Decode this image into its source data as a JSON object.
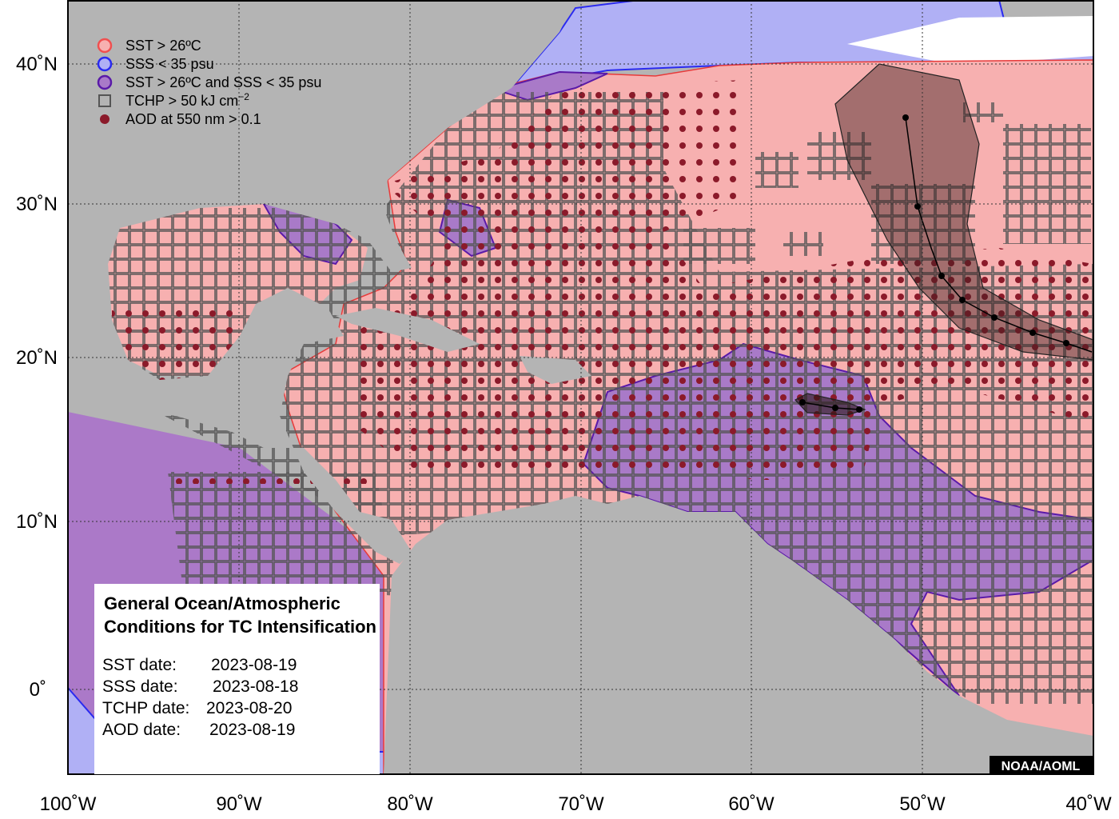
{
  "legend": {
    "items": [
      {
        "label": "SST > 26ºC"
      },
      {
        "label": "SSS < 35 psu"
      },
      {
        "label": "SST > 26ºC and SSS < 35 psu"
      },
      {
        "label": "TCHP > 50 kJ cm",
        "superscript": "−2"
      },
      {
        "label": "AOD at 550 nm > 0.1"
      }
    ]
  },
  "axes": {
    "longitude_labels": [
      "100˚W",
      "90˚W",
      "80˚W",
      "70˚W",
      "60˚W",
      "50˚W",
      "40˚W"
    ],
    "latitude_labels": [
      "40˚N",
      "30˚N",
      "20˚N",
      "10˚N",
      "0˚"
    ]
  },
  "info_box": {
    "title_lines": [
      "General Ocean/Atmospheric",
      "Conditions for TC Intensification"
    ],
    "rows": [
      {
        "label": "SST date:",
        "value": "2023-08-19"
      },
      {
        "label": "SSS date:",
        "value": "2023-08-18"
      },
      {
        "label": "TCHP date:",
        "value": "2023-08-20"
      },
      {
        "label": "AOD date:",
        "value": "2023-08-19"
      }
    ]
  },
  "credit": "NOAA/AOML"
}
